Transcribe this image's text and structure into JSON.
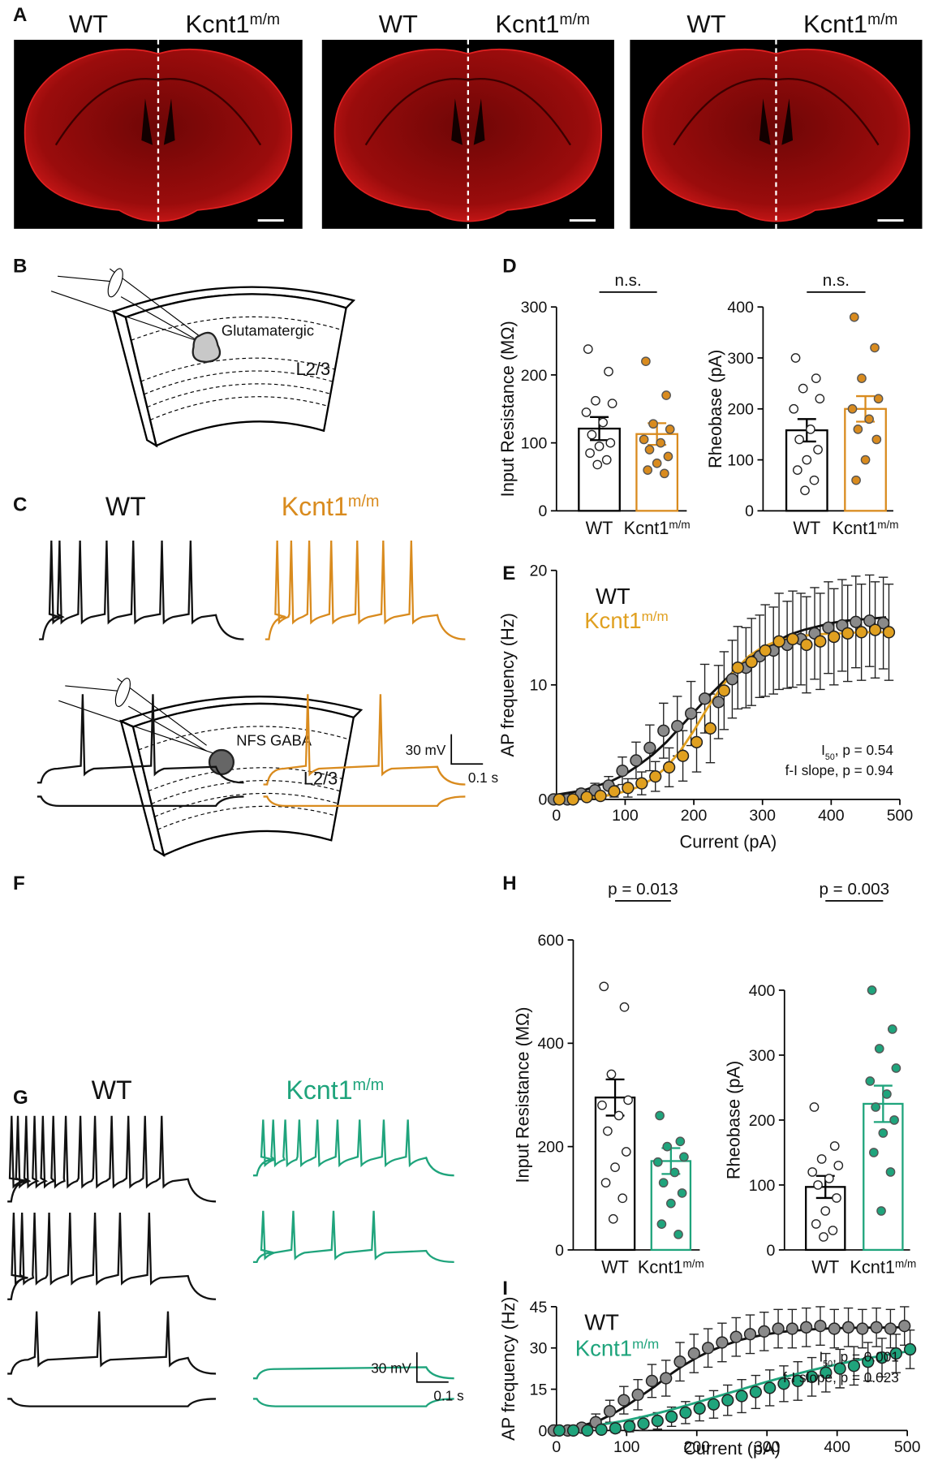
{
  "panel_labels": [
    "A",
    "B",
    "C",
    "D",
    "E",
    "F",
    "G",
    "H",
    "I"
  ],
  "panel_a": {
    "sections": [
      {
        "left": "WT",
        "right": "Kcnt1",
        "right_sup": "m/m"
      },
      {
        "left": "WT",
        "right": "Kcnt1",
        "right_sup": "m/m"
      },
      {
        "left": "WT",
        "right": "Kcnt1",
        "right_sup": "m/m"
      }
    ]
  },
  "panel_b": {
    "cell": "Glutamatergic",
    "layer": "L2/3"
  },
  "panel_c": {
    "left": "WT",
    "right": "Kcnt1",
    "right_sup": "m/m",
    "right_color": "#d98b1e",
    "scale_v": "30 mV",
    "scale_t": "0.1 s"
  },
  "panel_f": {
    "cell": "NFS GABA",
    "layer": "L2/3"
  },
  "panel_g": {
    "left": "WT",
    "right": "Kcnt1",
    "right_sup": "m/m",
    "right_color": "#1fa47c",
    "scale_v": "30 mV",
    "scale_t": "0.1 s"
  },
  "chart_data": [
    {
      "type": "bar",
      "ylabel": "Input Resistance (MΩ)",
      "ylim": [
        0,
        300
      ],
      "yticks": [
        0,
        100,
        200,
        300
      ],
      "significance": "n.s.",
      "series": [
        {
          "name": "WT",
          "color": "#000000",
          "point_fill": "#ffffff",
          "mean": 121,
          "sem": 17,
          "points": [
            238,
            205,
            162,
            158,
            145,
            130,
            112,
            100,
            95,
            85,
            75,
            68
          ]
        },
        {
          "name": "Kcnt1",
          "superscript": "m/m",
          "color": "#d98b1e",
          "point_fill": "#d98b1e",
          "mean": 113,
          "sem": 16,
          "points": [
            220,
            170,
            128,
            120,
            105,
            100,
            90,
            80,
            70,
            60,
            55
          ]
        }
      ]
    },
    {
      "type": "bar",
      "ylabel": "Rheobase (pA)",
      "ylim": [
        0,
        400
      ],
      "yticks": [
        0,
        100,
        200,
        300,
        400
      ],
      "significance": "n.s.",
      "series": [
        {
          "name": "WT",
          "color": "#000000",
          "point_fill": "#ffffff",
          "mean": 158,
          "sem": 22,
          "points": [
            300,
            260,
            240,
            220,
            200,
            160,
            140,
            120,
            100,
            80,
            60,
            40
          ]
        },
        {
          "name": "Kcnt1",
          "superscript": "m/m",
          "color": "#d98b1e",
          "point_fill": "#d98b1e",
          "mean": 200,
          "sem": 25,
          "points": [
            380,
            320,
            260,
            220,
            200,
            180,
            160,
            140,
            100,
            60
          ]
        }
      ]
    },
    {
      "type": "scatter",
      "xlabel": "Current (pA)",
      "ylabel": "AP frequency (Hz)",
      "xlim": [
        0,
        500
      ],
      "xticks": [
        0,
        100,
        200,
        300,
        400,
        500
      ],
      "ylim": [
        0,
        20
      ],
      "yticks": [
        0,
        10,
        20
      ],
      "x": [
        0,
        20,
        40,
        60,
        80,
        100,
        120,
        140,
        160,
        180,
        200,
        220,
        240,
        260,
        280,
        300,
        320,
        340,
        360,
        380,
        400,
        420,
        440,
        460,
        480
      ],
      "series": [
        {
          "name": "WT",
          "color": "#111111",
          "point_fill": "#8a8a8a",
          "values": [
            0,
            0,
            0.5,
            0.8,
            1.2,
            2.5,
            3.4,
            4.5,
            6,
            6.4,
            7.5,
            8.8,
            8.5,
            10.5,
            11.5,
            12.5,
            13,
            13.5,
            14,
            14.5,
            15,
            15.2,
            15.5,
            15.6,
            15.4
          ],
          "errors": [
            0,
            0.2,
            0.4,
            0.6,
            0.8,
            1.2,
            1.6,
            2,
            2.4,
            2.6,
            2.8,
            3,
            3.2,
            3.4,
            3.5,
            3.6,
            3.8,
            3.8,
            4,
            4,
            4,
            4,
            4,
            4,
            4
          ],
          "fit": [
            0.4,
            0.6,
            0.8,
            1.2,
            1.6,
            2.2,
            3.0,
            3.9,
            5.0,
            6.3,
            7.6,
            8.9,
            10.1,
            11.3,
            12.3,
            13.1,
            13.8,
            14.4,
            14.8,
            15.1,
            15.4,
            15.6,
            15.7,
            15.8,
            15.9
          ]
        },
        {
          "name": "Kcnt1",
          "superscript": "m/m",
          "color": "#e0a020",
          "point_fill": "#e0a020",
          "values": [
            0,
            0,
            0.2,
            0.3,
            0.7,
            1,
            1.4,
            2,
            2.8,
            3.8,
            5,
            6.2,
            9.5,
            11.5,
            12,
            13,
            13.8,
            14,
            13.5,
            13.8,
            14.2,
            14.5,
            14.6,
            14.8,
            14.6
          ],
          "errors": [
            0,
            0.1,
            0.2,
            0.3,
            0.5,
            0.8,
            1,
            1.3,
            1.7,
            2.2,
            2.6,
            3,
            3.4,
            3.6,
            3.8,
            4,
            4.2,
            4.2,
            4.2,
            4.2,
            4.2,
            4.2,
            4.2,
            4.2,
            4.2
          ],
          "fit": [
            0,
            0.05,
            0.1,
            0.2,
            0.4,
            0.7,
            1.1,
            1.8,
            2.8,
            4.2,
            6.0,
            8.0,
            9.8,
            11.3,
            12.5,
            13.3,
            13.8,
            14.1,
            14.3,
            14.4,
            14.5,
            14.5,
            14.6,
            14.6,
            14.6
          ]
        }
      ],
      "annotations": [
        {
          "text": "I",
          "sub": "50",
          "rest": ", p = 0.54"
        },
        {
          "text": "f-I slope, p = 0.94"
        }
      ]
    },
    {
      "type": "bar",
      "ylabel": "Input Resistance (MΩ)",
      "ylim": [
        0,
        600
      ],
      "yticks": [
        0,
        200,
        400,
        600
      ],
      "significance": "p = 0.013",
      "series": [
        {
          "name": "WT",
          "color": "#000000",
          "point_fill": "#ffffff",
          "mean": 295,
          "sem": 35,
          "points": [
            510,
            470,
            340,
            290,
            280,
            260,
            230,
            190,
            160,
            130,
            100,
            60
          ]
        },
        {
          "name": "Kcnt1",
          "superscript": "m/m",
          "color": "#1fa47c",
          "point_fill": "#1fa47c",
          "mean": 172,
          "sem": 25,
          "points": [
            260,
            210,
            200,
            180,
            170,
            150,
            130,
            110,
            90,
            50,
            30
          ]
        }
      ]
    },
    {
      "type": "bar",
      "ylabel": "Rheobase (pA)",
      "ylim": [
        0,
        400
      ],
      "yticks": [
        0,
        100,
        200,
        300,
        400
      ],
      "significance": "p = 0.003",
      "series": [
        {
          "name": "WT",
          "color": "#000000",
          "point_fill": "#ffffff",
          "mean": 97,
          "sem": 17,
          "points": [
            220,
            160,
            140,
            130,
            120,
            110,
            100,
            80,
            60,
            40,
            30,
            20
          ]
        },
        {
          "name": "Kcnt1",
          "superscript": "m/m",
          "color": "#1fa47c",
          "point_fill": "#1fa47c",
          "mean": 225,
          "sem": 28,
          "points": [
            400,
            340,
            310,
            280,
            260,
            240,
            220,
            200,
            180,
            150,
            120,
            60
          ]
        }
      ]
    },
    {
      "type": "scatter",
      "xlabel": "Current (pA)",
      "ylabel": "AP frequency (Hz)",
      "xlim": [
        0,
        500
      ],
      "xticks": [
        0,
        100,
        200,
        300,
        400,
        500
      ],
      "ylim": [
        0,
        45
      ],
      "yticks": [
        0,
        15,
        30,
        45
      ],
      "x": [
        0,
        20,
        40,
        60,
        80,
        100,
        120,
        140,
        160,
        180,
        200,
        220,
        240,
        260,
        280,
        300,
        320,
        340,
        360,
        380,
        400,
        420,
        440,
        460,
        480,
        500
      ],
      "series": [
        {
          "name": "WT",
          "color": "#111111",
          "point_fill": "#8a8a8a",
          "values": [
            0,
            0,
            1,
            3,
            7,
            11,
            13,
            18,
            19,
            25,
            28,
            30,
            32,
            34,
            35,
            36,
            37,
            37,
            37.5,
            38,
            37,
            37.5,
            37,
            37.5,
            37,
            38
          ],
          "errors": [
            0,
            0.5,
            1.5,
            3,
            4,
            5,
            5.5,
            6,
            6.5,
            7,
            7,
            7,
            7,
            7,
            7,
            7,
            7,
            7,
            7,
            7,
            7,
            7,
            7,
            7,
            7,
            7
          ],
          "fit": [
            0.5,
            1,
            2,
            3.5,
            6,
            9,
            12.5,
            16,
            20,
            23.5,
            26.5,
            29,
            31,
            32.8,
            34,
            35,
            35.8,
            36.3,
            36.7,
            37,
            37.2,
            37.3,
            37.4,
            37.4,
            37.5,
            37.5
          ]
        },
        {
          "name": "Kcnt1",
          "superscript": "m/m",
          "color": "#1fa47c",
          "point_fill": "#1fa47c",
          "values": [
            0,
            0,
            0,
            0.3,
            0.8,
            1.5,
            2.5,
            3.5,
            5,
            6.5,
            8,
            9.5,
            11,
            12.5,
            14,
            15.5,
            17,
            18,
            19.5,
            21,
            22.5,
            23.5,
            25,
            26.5,
            28,
            29.5
          ],
          "errors": [
            0,
            0,
            0.3,
            0.8,
            1.5,
            2,
            2.5,
            3,
            3.5,
            4,
            4.5,
            5,
            5.5,
            6,
            6,
            6.5,
            6.5,
            7,
            7,
            7,
            7,
            7,
            7,
            7,
            7,
            7
          ],
          "fit": [
            0.5,
            0.9,
            1.4,
            2,
            2.8,
            3.7,
            4.8,
            6,
            7.3,
            8.7,
            10.2,
            11.7,
            13.2,
            14.7,
            16.2,
            17.7,
            19.1,
            20.4,
            21.7,
            22.9,
            24,
            25.1,
            26.1,
            27,
            27.9,
            28.7
          ]
        }
      ],
      "annotations": [
        {
          "text": "I",
          "sub": "50",
          "rest": ", p = 0.001"
        },
        {
          "text": "f-I slope, p = 0.023"
        }
      ]
    }
  ]
}
